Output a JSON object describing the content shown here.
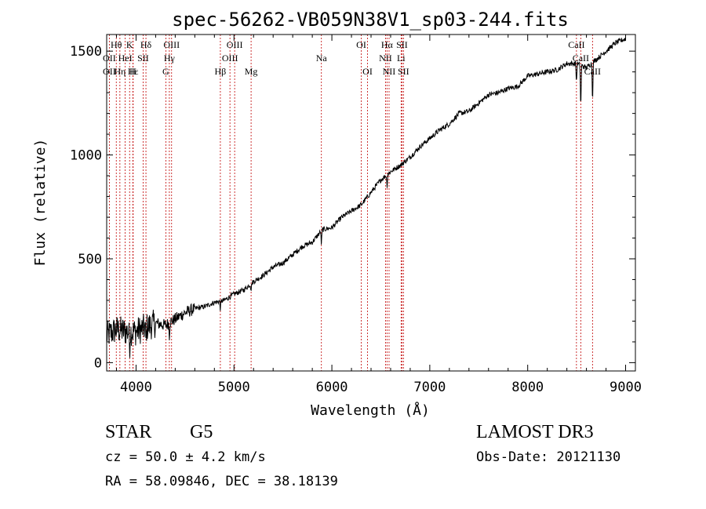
{
  "chart_data": {
    "type": "line",
    "title": "spec-56262-VB059N38V1_sp03-244.fits",
    "xlabel": "Wavelength (Å)",
    "ylabel": "Flux (relative)",
    "xlim": [
      3700,
      9100
    ],
    "ylim": [
      -40,
      1580
    ],
    "xticks": [
      4000,
      5000,
      6000,
      7000,
      8000,
      9000
    ],
    "xtick_labels": [
      "4000",
      "5000",
      "6000",
      "7000",
      "8000",
      "9000"
    ],
    "yticks": [
      0,
      500,
      1000,
      1500
    ],
    "ytick_labels": [
      "0",
      "500",
      "1000",
      "1500"
    ],
    "grid": false,
    "series": [
      {
        "name": "flux",
        "x": [
          3700,
          3800,
          3900,
          4000,
          4100,
          4200,
          4300,
          4400,
          4500,
          4600,
          4700,
          4800,
          4900,
          5000,
          5100,
          5200,
          5300,
          5400,
          5500,
          5600,
          5700,
          5800,
          5900,
          6000,
          6100,
          6200,
          6300,
          6400,
          6500,
          6600,
          6700,
          6800,
          6900,
          7000,
          7100,
          7200,
          7300,
          7400,
          7500,
          7600,
          7700,
          7800,
          7900,
          8000,
          8100,
          8200,
          8300,
          8400,
          8500,
          8600,
          8700,
          8800,
          8900,
          9000
        ],
        "values": [
          130,
          160,
          150,
          150,
          170,
          190,
          180,
          210,
          240,
          260,
          270,
          290,
          300,
          330,
          350,
          390,
          420,
          460,
          480,
          520,
          560,
          580,
          640,
          650,
          700,
          730,
          760,
          820,
          880,
          920,
          950,
          990,
          1040,
          1080,
          1120,
          1150,
          1200,
          1210,
          1250,
          1290,
          1300,
          1320,
          1330,
          1380,
          1390,
          1400,
          1410,
          1440,
          1440,
          1420,
          1460,
          1500,
          1540,
          1560
        ]
      }
    ],
    "absorption_features": [
      {
        "x": 3934,
        "depth": 80
      },
      {
        "x": 4101,
        "depth": 70
      },
      {
        "x": 4340,
        "depth": 60
      },
      {
        "x": 4861,
        "depth": 40
      },
      {
        "x": 5175,
        "depth": 30
      },
      {
        "x": 5893,
        "depth": 70
      },
      {
        "x": 6563,
        "depth": 60
      },
      {
        "x": 8498,
        "depth": 100
      },
      {
        "x": 8542,
        "depth": 230
      },
      {
        "x": 8662,
        "depth": 200
      }
    ],
    "spectral_lines": [
      {
        "label": "Hθ",
        "x": 3798,
        "row": 0
      },
      {
        "label": "K",
        "x": 3934,
        "row": 0
      },
      {
        "label": "Hδ",
        "x": 4101,
        "row": 0
      },
      {
        "label": "OIII",
        "x": 4363,
        "row": 0
      },
      {
        "label": "OIII",
        "x": 5007,
        "row": 0
      },
      {
        "label": "OI",
        "x": 6300,
        "row": 0
      },
      {
        "label": "Hα",
        "x": 6563,
        "row": 0
      },
      {
        "label": "SII",
        "x": 6716,
        "row": 0
      },
      {
        "label": "CaII",
        "x": 8498,
        "row": 0
      },
      {
        "label": "OII",
        "x": 3727,
        "row": 1
      },
      {
        "label": "HeI",
        "x": 3889,
        "row": 1
      },
      {
        "label": "SII",
        "x": 4072,
        "row": 1
      },
      {
        "label": "Hγ",
        "x": 4340,
        "row": 1
      },
      {
        "label": "OIII",
        "x": 4959,
        "row": 1
      },
      {
        "label": "Na",
        "x": 5893,
        "row": 1
      },
      {
        "label": "NII",
        "x": 6548,
        "row": 1
      },
      {
        "label": "Li",
        "x": 6707,
        "row": 1
      },
      {
        "label": "CaII",
        "x": 8542,
        "row": 1
      },
      {
        "label": "OII",
        "x": 3727,
        "row": 2
      },
      {
        "label": "Hε",
        "x": 3970,
        "row": 2
      },
      {
        "label": "Hη",
        "x": 3835,
        "row": 2
      },
      {
        "label": "H",
        "x": 3968,
        "row": 2
      },
      {
        "label": "G",
        "x": 4304,
        "row": 2
      },
      {
        "label": "Hβ",
        "x": 4861,
        "row": 2
      },
      {
        "label": "Mg",
        "x": 5175,
        "row": 2
      },
      {
        "label": "OI",
        "x": 6364,
        "row": 2
      },
      {
        "label": "NII",
        "x": 6584,
        "row": 2
      },
      {
        "label": "SII",
        "x": 6731,
        "row": 2
      },
      {
        "label": "CaII",
        "x": 8662,
        "row": 2
      }
    ],
    "line_color": "#000000",
    "marker_color": "#c00000"
  },
  "info": {
    "class_label": "STAR",
    "subclass_label": "G5",
    "cz_text": "cz = 50.0 ± 4.2 km/s",
    "radec_text": "RA =  58.09846, DEC =  38.18139",
    "survey_label": "LAMOST DR3",
    "obs_date_text": "Obs-Date: 20121130"
  }
}
